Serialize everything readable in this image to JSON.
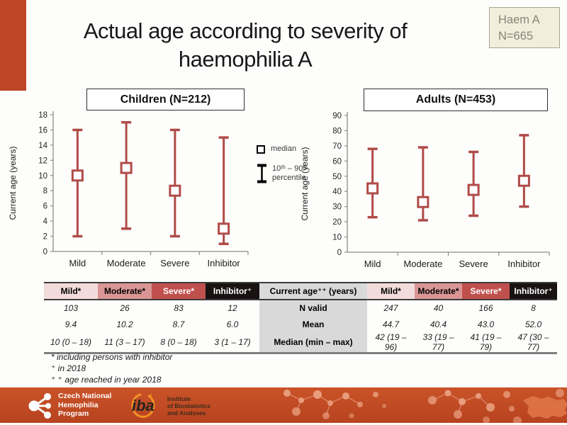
{
  "slide": {
    "title_line1": "Actual age according to severity of",
    "title_line2": "haemophilia A",
    "badge": {
      "line1": "Haem A",
      "line2": "N=665"
    },
    "footnotes": [
      "* including persons with inhibitor",
      "⁺ in 2018",
      "⁺ ⁺ age reached in year 2018"
    ]
  },
  "legend": {
    "median_label": "median",
    "percentile_line1": "10ᵗʰ – 90ᵗʰ",
    "percentile_line2": "percentile"
  },
  "chart_data": [
    {
      "type": "errorbar",
      "title": "Children (N=212)",
      "ylabel": "Current age (years)",
      "categories": [
        "Mild",
        "Moderate",
        "Severe",
        "Inhibitor"
      ],
      "series": [
        {
          "name": "median",
          "values": [
            10,
            11,
            8,
            3
          ]
        },
        {
          "name": "p10",
          "values": [
            2,
            3,
            2,
            1
          ]
        },
        {
          "name": "p90",
          "values": [
            16,
            17,
            16,
            15
          ]
        }
      ],
      "ylim": [
        0,
        18
      ],
      "ytick_step": 2,
      "grid": false,
      "legend_position": "right-of-plot"
    },
    {
      "type": "errorbar",
      "title": "Adults (N=453)",
      "ylabel": "Current age (years)",
      "categories": [
        "Mild",
        "Moderate",
        "Severe",
        "Inhibitor"
      ],
      "series": [
        {
          "name": "median",
          "values": [
            42,
            33,
            41,
            47
          ]
        },
        {
          "name": "p10",
          "values": [
            23,
            21,
            24,
            30
          ]
        },
        {
          "name": "p90",
          "values": [
            68,
            69,
            66,
            77
          ]
        }
      ],
      "ylim": [
        0,
        90
      ],
      "ytick_step": 10,
      "grid": false,
      "legend_position": "left-of-plot"
    }
  ],
  "table": {
    "header": [
      "Mild*",
      "Moderate*",
      "Severe*",
      "Inhibitor⁺",
      "Current age⁺⁺ (years)",
      "Mild*",
      "Moderate*",
      "Severe*",
      "Inhibitor⁺"
    ],
    "rows": [
      {
        "label": "N valid",
        "cells": [
          "103",
          "26",
          "83",
          "12",
          "247",
          "40",
          "166",
          "8"
        ]
      },
      {
        "label": "Mean",
        "cells": [
          "9.4",
          "10.2",
          "8.7",
          "6.0",
          "44.7",
          "40.4",
          "43.0",
          "52.0"
        ]
      },
      {
        "label": "Median (min – max)",
        "cells": [
          "10 (0 – 18)",
          "11 (3 – 17)",
          "8 (0 – 18)",
          "3 (1 – 17)",
          "42 (19 – 96)",
          "33 (19 – 77)",
          "41 (19 – 79)",
          "47 (30 – 77)"
        ]
      }
    ]
  },
  "footer": {
    "org1": {
      "line1": "Czech National",
      "line2": "Hemophilia",
      "line3": "Program"
    },
    "org2": {
      "logo_text": "iba",
      "line1": "Institute",
      "line2": "of Biostatistics",
      "line3": "and Analyses"
    }
  },
  "colors": {
    "accent_bar": "#bf4527",
    "series": "#b04b48",
    "axis": "#8c8c8c",
    "severity_header_bg": [
      "#f2dcdb",
      "#d99694",
      "#c0504d",
      "#191212"
    ],
    "severity_header_fg": [
      "#000000",
      "#000000",
      "#ffffff",
      "#ffffff"
    ],
    "table_mid_bg": "#d9d9d9",
    "badge_bg": "#f2eedb",
    "footer_band": "#c04a22"
  }
}
